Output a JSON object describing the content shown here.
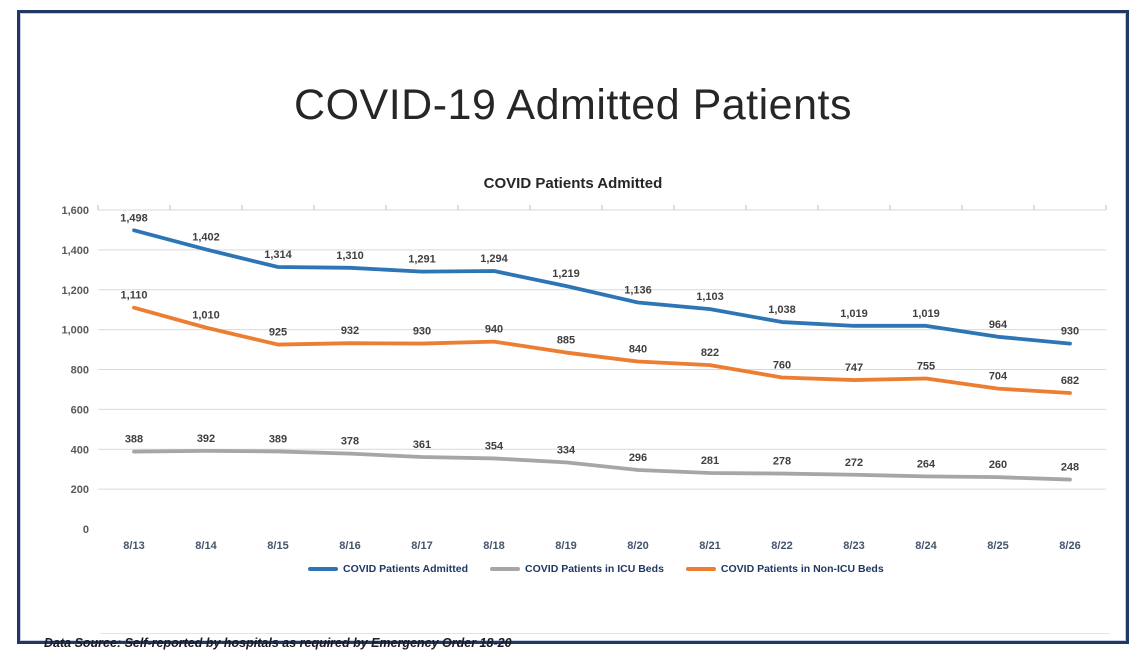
{
  "page": {
    "title": "COVID-19 Admitted Patients"
  },
  "chart_data": {
    "type": "line",
    "title": "COVID Patients Admitted",
    "categories": [
      "8/13",
      "8/14",
      "8/15",
      "8/16",
      "8/17",
      "8/18",
      "8/19",
      "8/20",
      "8/21",
      "8/22",
      "8/23",
      "8/24",
      "8/25",
      "8/26"
    ],
    "series": [
      {
        "name": "COVID Patients Admitted",
        "color": "#2e75b6",
        "values": [
          1498,
          1402,
          1314,
          1310,
          1291,
          1294,
          1219,
          1136,
          1103,
          1038,
          1019,
          1019,
          964,
          930
        ]
      },
      {
        "name": "COVID Patients in ICU Beds",
        "color": "#a6a6a6",
        "values": [
          388,
          392,
          389,
          378,
          361,
          354,
          334,
          296,
          281,
          278,
          272,
          264,
          260,
          248
        ]
      },
      {
        "name": "COVID Patients in Non-ICU Beds",
        "color": "#ed7d31",
        "values": [
          1110,
          1010,
          925,
          932,
          930,
          940,
          885,
          840,
          822,
          760,
          747,
          755,
          704,
          682
        ]
      }
    ],
    "ylim": [
      0,
      1600
    ],
    "y_tick_step": 200,
    "y_tick_labels": [
      "0",
      "200",
      "400",
      "600",
      "800",
      "1,000",
      "1,200",
      "1,400",
      "1,600"
    ],
    "grid": true,
    "data_labels": true,
    "legend_position": "bottom",
    "axis_colors": {
      "gridline": "#d9d9d9",
      "tick": "#bfbfbf",
      "y_label": "#595959",
      "x_label": "#44546a",
      "data_label": "#404040"
    }
  },
  "footer": {
    "source_note": "Data Source: Self-reported by hospitals as required by Emergency Order 18-20"
  }
}
